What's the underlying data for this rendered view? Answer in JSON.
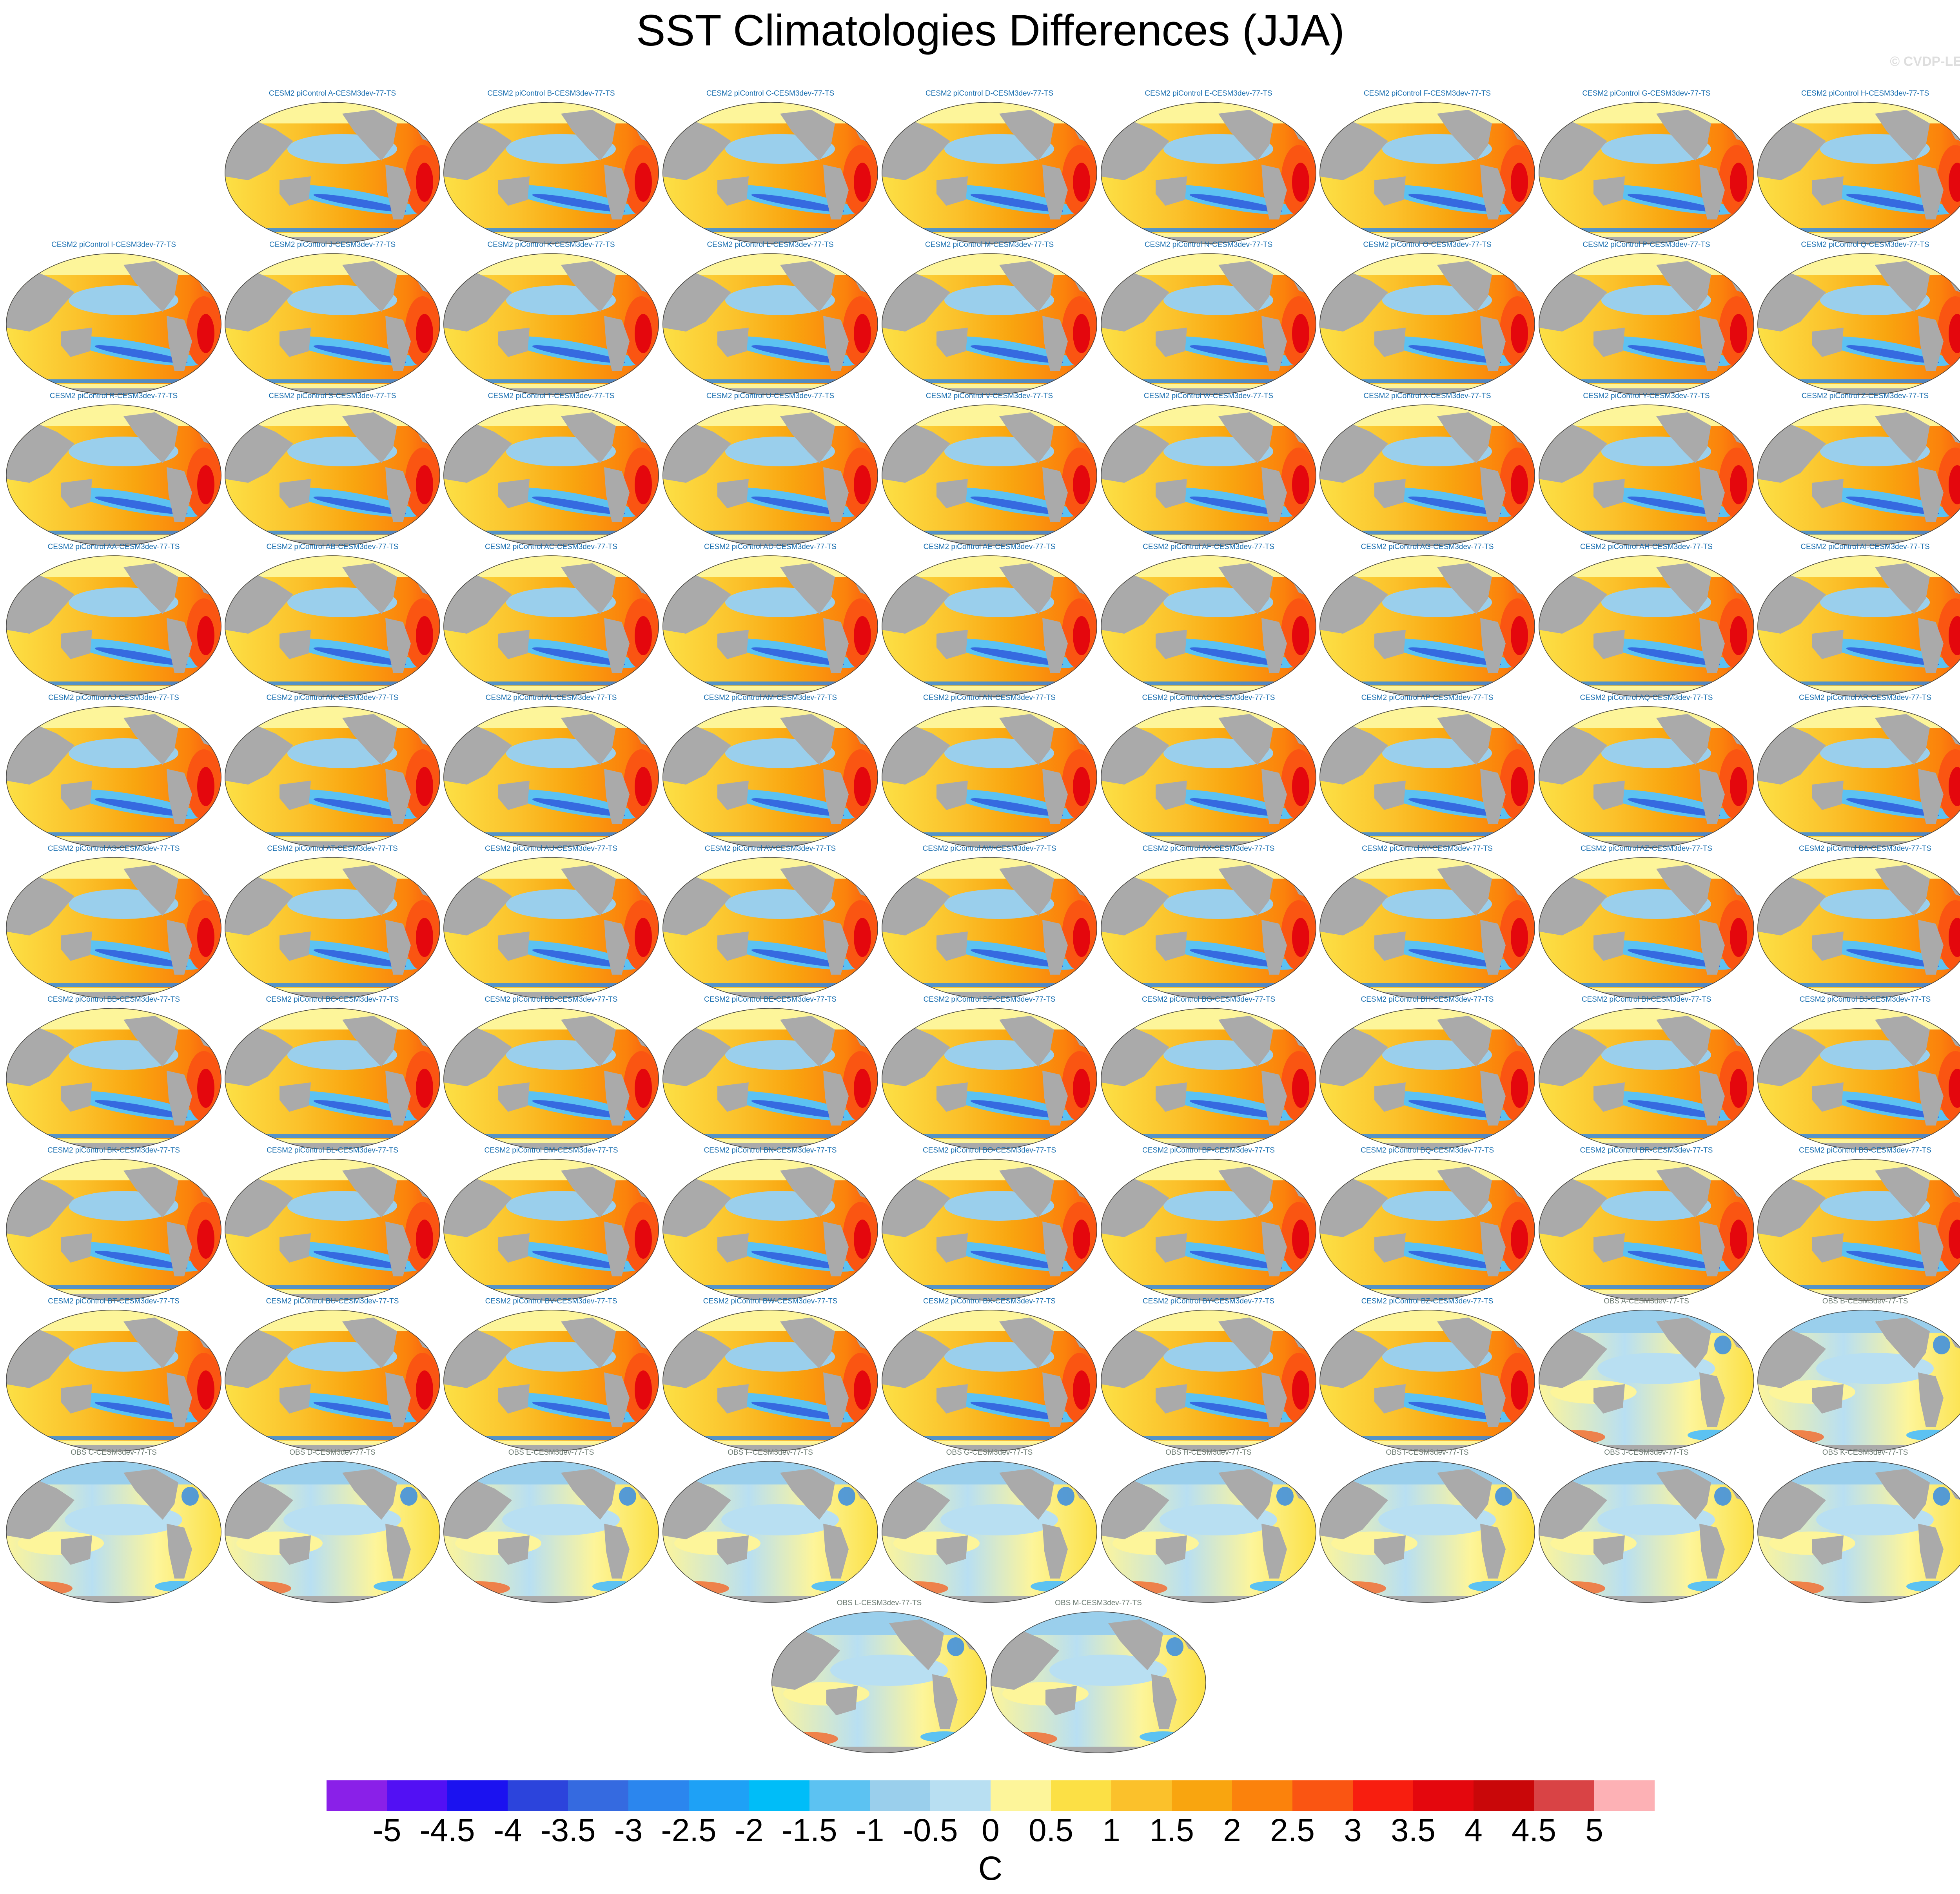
{
  "title": "SST Climatologies Differences (JJA)",
  "credit": "© CVDP-LE",
  "colorbar": {
    "unit": "C",
    "tick_labels": [
      "-5",
      "-4.5",
      "-4",
      "-3.5",
      "-3",
      "-2.5",
      "-2",
      "-1.5",
      "-1",
      "-0.5",
      "0",
      "0.5",
      "1",
      "1.5",
      "2",
      "2.5",
      "3",
      "3.5",
      "4",
      "4.5",
      "5"
    ],
    "colors": [
      "#8a20e8",
      "#5210f4",
      "#1b12f0",
      "#2c44dc",
      "#356ae0",
      "#2b86ee",
      "#1ea1f6",
      "#00bdf8",
      "#5cc2f2",
      "#9acfec",
      "#b8dff2",
      "#fdf59a",
      "#fce045",
      "#fbc12b",
      "#f9a50f",
      "#fb820c",
      "#fa5512",
      "#f81e0f",
      "#e4070d",
      "#c90709",
      "#d94345",
      "#fdb1b5"
    ]
  },
  "panels": [
    {
      "title": "CESM2 piControl A-CESM3dev-77-TS",
      "type": "model"
    },
    {
      "title": "CESM2 piControl B-CESM3dev-77-TS",
      "type": "model"
    },
    {
      "title": "CESM2 piControl C-CESM3dev-77-TS",
      "type": "model"
    },
    {
      "title": "CESM2 piControl D-CESM3dev-77-TS",
      "type": "model"
    },
    {
      "title": "CESM2 piControl E-CESM3dev-77-TS",
      "type": "model"
    },
    {
      "title": "CESM2 piControl F-CESM3dev-77-TS",
      "type": "model"
    },
    {
      "title": "CESM2 piControl G-CESM3dev-77-TS",
      "type": "model"
    },
    {
      "title": "CESM2 piControl H-CESM3dev-77-TS",
      "type": "model"
    },
    {
      "title": "CESM2 piControl I-CESM3dev-77-TS",
      "type": "model"
    },
    {
      "title": "CESM2 piControl J-CESM3dev-77-TS",
      "type": "model"
    },
    {
      "title": "CESM2 piControl K-CESM3dev-77-TS",
      "type": "model"
    },
    {
      "title": "CESM2 piControl L-CESM3dev-77-TS",
      "type": "model"
    },
    {
      "title": "CESM2 piControl M-CESM3dev-77-TS",
      "type": "model"
    },
    {
      "title": "CESM2 piControl N-CESM3dev-77-TS",
      "type": "model"
    },
    {
      "title": "CESM2 piControl O-CESM3dev-77-TS",
      "type": "model"
    },
    {
      "title": "CESM2 piControl P-CESM3dev-77-TS",
      "type": "model"
    },
    {
      "title": "CESM2 piControl Q-CESM3dev-77-TS",
      "type": "model"
    },
    {
      "title": "CESM2 piControl R-CESM3dev-77-TS",
      "type": "model"
    },
    {
      "title": "CESM2 piControl S-CESM3dev-77-TS",
      "type": "model"
    },
    {
      "title": "CESM2 piControl T-CESM3dev-77-TS",
      "type": "model"
    },
    {
      "title": "CESM2 piControl U-CESM3dev-77-TS",
      "type": "model"
    },
    {
      "title": "CESM2 piControl V-CESM3dev-77-TS",
      "type": "model"
    },
    {
      "title": "CESM2 piControl W-CESM3dev-77-TS",
      "type": "model"
    },
    {
      "title": "CESM2 piControl X-CESM3dev-77-TS",
      "type": "model"
    },
    {
      "title": "CESM2 piControl Y-CESM3dev-77-TS",
      "type": "model"
    },
    {
      "title": "CESM2 piControl Z-CESM3dev-77-TS",
      "type": "model"
    },
    {
      "title": "CESM2 piControl AA-CESM3dev-77-TS",
      "type": "model"
    },
    {
      "title": "CESM2 piControl AB-CESM3dev-77-TS",
      "type": "model"
    },
    {
      "title": "CESM2 piControl AC-CESM3dev-77-TS",
      "type": "model"
    },
    {
      "title": "CESM2 piControl AD-CESM3dev-77-TS",
      "type": "model"
    },
    {
      "title": "CESM2 piControl AE-CESM3dev-77-TS",
      "type": "model"
    },
    {
      "title": "CESM2 piControl AF-CESM3dev-77-TS",
      "type": "model"
    },
    {
      "title": "CESM2 piControl AG-CESM3dev-77-TS",
      "type": "model"
    },
    {
      "title": "CESM2 piControl AH-CESM3dev-77-TS",
      "type": "model"
    },
    {
      "title": "CESM2 piControl AI-CESM3dev-77-TS",
      "type": "model"
    },
    {
      "title": "CESM2 piControl AJ-CESM3dev-77-TS",
      "type": "model"
    },
    {
      "title": "CESM2 piControl AK-CESM3dev-77-TS",
      "type": "model"
    },
    {
      "title": "CESM2 piControl AL-CESM3dev-77-TS",
      "type": "model"
    },
    {
      "title": "CESM2 piControl AM-CESM3dev-77-TS",
      "type": "model"
    },
    {
      "title": "CESM2 piControl AN-CESM3dev-77-TS",
      "type": "model"
    },
    {
      "title": "CESM2 piControl AO-CESM3dev-77-TS",
      "type": "model"
    },
    {
      "title": "CESM2 piControl AP-CESM3dev-77-TS",
      "type": "model"
    },
    {
      "title": "CESM2 piControl AQ-CESM3dev-77-TS",
      "type": "model"
    },
    {
      "title": "CESM2 piControl AR-CESM3dev-77-TS",
      "type": "model"
    },
    {
      "title": "CESM2 piControl AS-CESM3dev-77-TS",
      "type": "model"
    },
    {
      "title": "CESM2 piControl AT-CESM3dev-77-TS",
      "type": "model"
    },
    {
      "title": "CESM2 piControl AU-CESM3dev-77-TS",
      "type": "model"
    },
    {
      "title": "CESM2 piControl AV-CESM3dev-77-TS",
      "type": "model"
    },
    {
      "title": "CESM2 piControl AW-CESM3dev-77-TS",
      "type": "model"
    },
    {
      "title": "CESM2 piControl AX-CESM3dev-77-TS",
      "type": "model"
    },
    {
      "title": "CESM2 piControl AY-CESM3dev-77-TS",
      "type": "model"
    },
    {
      "title": "CESM2 piControl AZ-CESM3dev-77-TS",
      "type": "model"
    },
    {
      "title": "CESM2 piControl BA-CESM3dev-77-TS",
      "type": "model"
    },
    {
      "title": "CESM2 piControl BB-CESM3dev-77-TS",
      "type": "model"
    },
    {
      "title": "CESM2 piControl BC-CESM3dev-77-TS",
      "type": "model"
    },
    {
      "title": "CESM2 piControl BD-CESM3dev-77-TS",
      "type": "model"
    },
    {
      "title": "CESM2 piControl BE-CESM3dev-77-TS",
      "type": "model"
    },
    {
      "title": "CESM2 piControl BF-CESM3dev-77-TS",
      "type": "model"
    },
    {
      "title": "CESM2 piControl BG-CESM3dev-77-TS",
      "type": "model"
    },
    {
      "title": "CESM2 piControl BH-CESM3dev-77-TS",
      "type": "model"
    },
    {
      "title": "CESM2 piControl BI-CESM3dev-77-TS",
      "type": "model"
    },
    {
      "title": "CESM2 piControl BJ-CESM3dev-77-TS",
      "type": "model"
    },
    {
      "title": "CESM2 piControl BK-CESM3dev-77-TS",
      "type": "model"
    },
    {
      "title": "CESM2 piControl BL-CESM3dev-77-TS",
      "type": "model"
    },
    {
      "title": "CESM2 piControl BM-CESM3dev-77-TS",
      "type": "model"
    },
    {
      "title": "CESM2 piControl BN-CESM3dev-77-TS",
      "type": "model"
    },
    {
      "title": "CESM2 piControl BO-CESM3dev-77-TS",
      "type": "model"
    },
    {
      "title": "CESM2 piControl BP-CESM3dev-77-TS",
      "type": "model"
    },
    {
      "title": "CESM2 piControl BQ-CESM3dev-77-TS",
      "type": "model"
    },
    {
      "title": "CESM2 piControl BR-CESM3dev-77-TS",
      "type": "model"
    },
    {
      "title": "CESM2 piControl BS-CESM3dev-77-TS",
      "type": "model"
    },
    {
      "title": "CESM2 piControl BT-CESM3dev-77-TS",
      "type": "model"
    },
    {
      "title": "CESM2 piControl BU-CESM3dev-77-TS",
      "type": "model"
    },
    {
      "title": "CESM2 piControl BV-CESM3dev-77-TS",
      "type": "model"
    },
    {
      "title": "CESM2 piControl BW-CESM3dev-77-TS",
      "type": "model"
    },
    {
      "title": "CESM2 piControl BX-CESM3dev-77-TS",
      "type": "model"
    },
    {
      "title": "CESM2 piControl BY-CESM3dev-77-TS",
      "type": "model"
    },
    {
      "title": "CESM2 piControl BZ-CESM3dev-77-TS",
      "type": "model"
    },
    {
      "title": "OBS A-CESM3dev-77-TS",
      "type": "obs"
    },
    {
      "title": "OBS B-CESM3dev-77-TS",
      "type": "obs"
    },
    {
      "title": "OBS C-CESM3dev-77-TS",
      "type": "obs"
    },
    {
      "title": "OBS D-CESM3dev-77-TS",
      "type": "obs"
    },
    {
      "title": "OBS E-CESM3dev-77-TS",
      "type": "obs"
    },
    {
      "title": "OBS F-CESM3dev-77-TS",
      "type": "obs"
    },
    {
      "title": "OBS G-CESM3dev-77-TS",
      "type": "obs"
    },
    {
      "title": "OBS H-CESM3dev-77-TS",
      "type": "obs"
    },
    {
      "title": "OBS I-CESM3dev-77-TS",
      "type": "obs"
    },
    {
      "title": "OBS J-CESM3dev-77-TS",
      "type": "obs"
    },
    {
      "title": "OBS K-CESM3dev-77-TS",
      "type": "obs"
    },
    {
      "title": "OBS L-CESM3dev-77-TS",
      "type": "obs"
    },
    {
      "title": "OBS M-CESM3dev-77-TS",
      "type": "obs"
    }
  ],
  "chart_data": {
    "type": "heatmap",
    "title": "SST Climatologies Differences (JJA)",
    "variable": "SST",
    "season": "JJA",
    "colorbar_label": "C",
    "colorbar_levels": [
      -5,
      -4.5,
      -4,
      -3.5,
      -3,
      -2.5,
      -2,
      -1.5,
      -1,
      -0.5,
      0,
      0.5,
      1,
      1.5,
      2,
      2.5,
      3,
      3.5,
      4,
      4.5,
      5
    ],
    "value_range": [
      -5,
      5
    ],
    "panel_count": 91
  }
}
